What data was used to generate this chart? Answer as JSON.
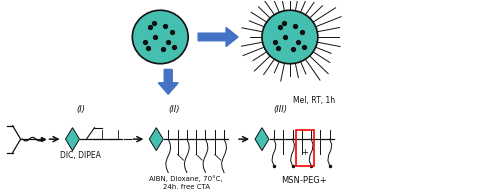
{
  "bg_color": "#ffffff",
  "teal_color": "#45bfb0",
  "arrow_blue": "#4472c4",
  "dark": "#111111",
  "red_box": "#ff0000",
  "particle_fill": "#45bfb0",
  "particle_border": "#111111",
  "dot_color": "#111111",
  "label_I": "(I)",
  "label_II": "(II)",
  "label_III": "(III)",
  "text_DIC": "DIC, DIPEA",
  "text_AIBN": "AIBN, Dioxane, 70°C,\n24h, free CTA",
  "text_MeI": "MeI, RT, 1h",
  "text_MSN": "MSN-PEG+"
}
